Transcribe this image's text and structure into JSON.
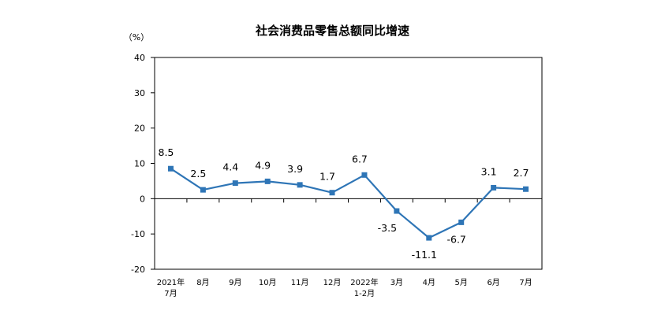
{
  "chart_data": {
    "type": "line",
    "title": "社会消费品零售总额同比增速",
    "ylabel": "（%）",
    "ylim": [
      -20,
      40
    ],
    "yticks": [
      40,
      30,
      20,
      10,
      0,
      -10,
      -20
    ],
    "categories": [
      [
        "2021年",
        "7月"
      ],
      [
        "8月"
      ],
      [
        "9月"
      ],
      [
        "10月"
      ],
      [
        "11月"
      ],
      [
        "12月"
      ],
      [
        "2022年",
        "1-2月"
      ],
      [
        "3月"
      ],
      [
        "4月"
      ],
      [
        "5月"
      ],
      [
        "6月"
      ],
      [
        "7月"
      ]
    ],
    "values": [
      8.5,
      2.5,
      4.4,
      4.9,
      3.9,
      1.7,
      6.7,
      -3.5,
      -11.1,
      -6.7,
      3.1,
      2.7
    ],
    "data_labels": [
      "8.5",
      "2.5",
      "4.4",
      "4.9",
      "3.9",
      "1.7",
      "6.7",
      "-3.5",
      "-11.1",
      "-6.7",
      "3.1",
      "2.7"
    ],
    "color": "#2E75B6",
    "grid": false
  }
}
